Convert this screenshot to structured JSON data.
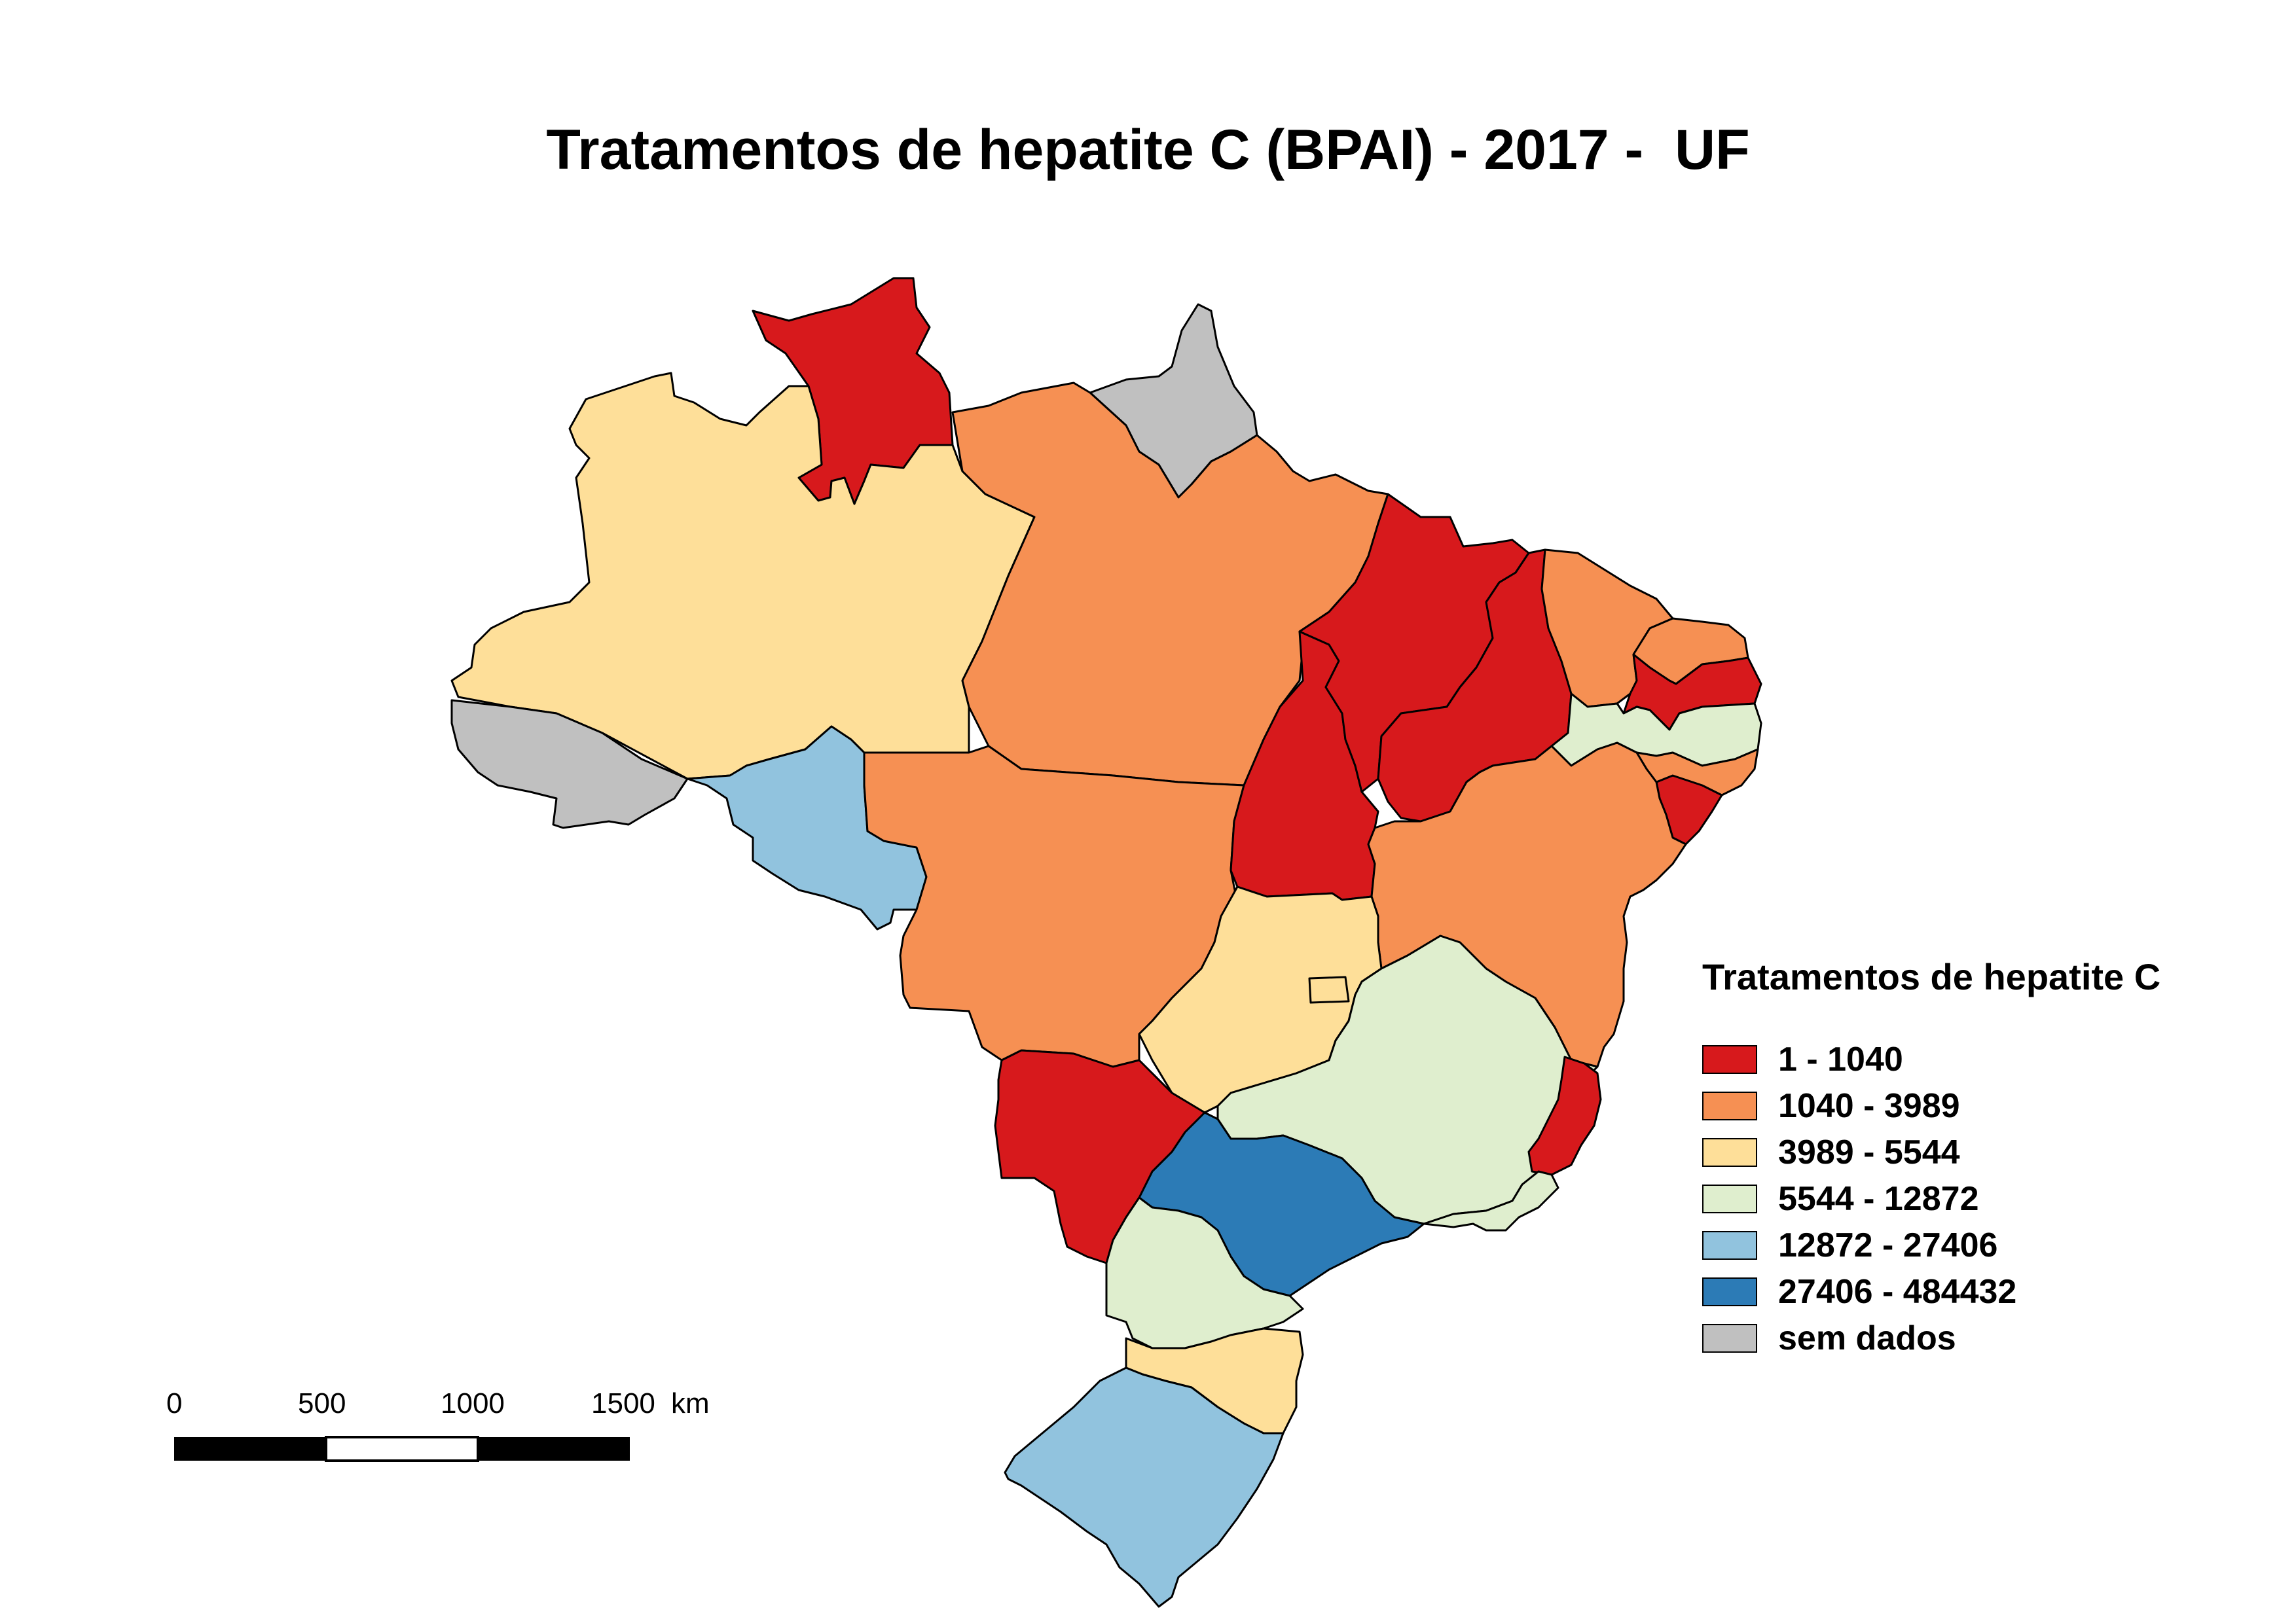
{
  "title": "Tratamentos de hepatite C (BPAI) - 2017 -  UF",
  "legend": {
    "title": "Tratamentos de hepatite C",
    "classes": [
      {
        "label": "1 - 1040",
        "color": "#d7191c"
      },
      {
        "label": "1040 - 3989",
        "color": "#f69053"
      },
      {
        "label": "3989 - 5544",
        "color": "#fedf99"
      },
      {
        "label": "5544 - 12872",
        "color": "#dfeece"
      },
      {
        "label": "12872 - 27406",
        "color": "#91c3de"
      },
      {
        "label": "27406 - 484432",
        "color": "#2c7bb6"
      },
      {
        "label": "sem dados",
        "color": "#c0c0c0"
      }
    ]
  },
  "scale_bar": {
    "labels": [
      "0",
      "500",
      "1000",
      "1500"
    ],
    "unit": "km"
  },
  "regions": [
    {
      "uf": "RR",
      "class": 0
    },
    {
      "uf": "AP",
      "class": 6
    },
    {
      "uf": "AM",
      "class": 2
    },
    {
      "uf": "PA",
      "class": 1
    },
    {
      "uf": "AC",
      "class": 6
    },
    {
      "uf": "RO",
      "class": 4
    },
    {
      "uf": "MT",
      "class": 1
    },
    {
      "uf": "TO",
      "class": 0
    },
    {
      "uf": "MA",
      "class": 0
    },
    {
      "uf": "PI",
      "class": 0
    },
    {
      "uf": "CE",
      "class": 1
    },
    {
      "uf": "RN",
      "class": 1
    },
    {
      "uf": "PB",
      "class": 0
    },
    {
      "uf": "PE",
      "class": 3
    },
    {
      "uf": "AL",
      "class": 0
    },
    {
      "uf": "SE",
      "class": 1
    },
    {
      "uf": "BA",
      "class": 1
    },
    {
      "uf": "GO",
      "class": 2
    },
    {
      "uf": "DF",
      "class": 2
    },
    {
      "uf": "MG",
      "class": 3
    },
    {
      "uf": "ES",
      "class": 0
    },
    {
      "uf": "RJ",
      "class": 3
    },
    {
      "uf": "SP",
      "class": 5
    },
    {
      "uf": "MS",
      "class": 0
    },
    {
      "uf": "PR",
      "class": 3
    },
    {
      "uf": "SC",
      "class": 2
    },
    {
      "uf": "RS",
      "class": 4
    }
  ]
}
